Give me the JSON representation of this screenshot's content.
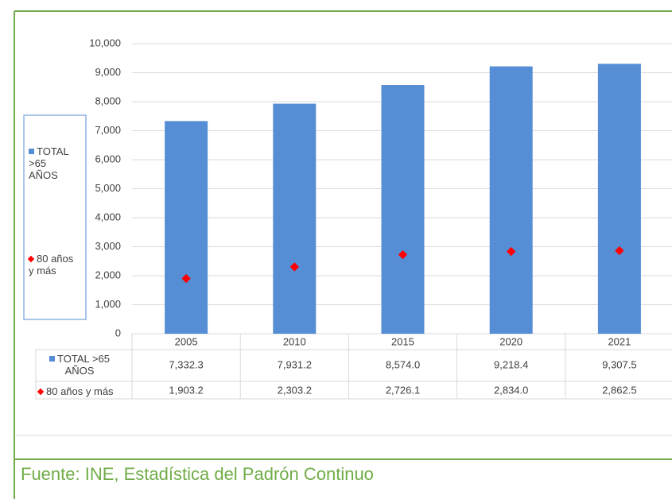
{
  "chart_data": {
    "type": "bar",
    "categories": [
      "2005",
      "2010",
      "2015",
      "2020",
      "2021"
    ],
    "series": [
      {
        "name": "TOTAL >65 AÑOS",
        "type": "bar",
        "color": "#558ed5",
        "values": [
          7332.3,
          7931.2,
          8574.0,
          9218.4,
          9307.5
        ],
        "value_labels": [
          "7,332.3",
          "7,931.2",
          "8,574.0",
          "9,218.4",
          "9,307.5"
        ]
      },
      {
        "name": "80 años y más",
        "type": "diamond",
        "color": "#ff0000",
        "values": [
          1903.2,
          2303.2,
          2726.1,
          2834.0,
          2862.5
        ],
        "value_labels": [
          "1,903.2",
          "2,303.2",
          "2,726.1",
          "2,834.0",
          "2,862.5"
        ]
      }
    ],
    "ylim": [
      0,
      10000
    ],
    "yticks": [
      0,
      {
        "value": 1000,
        "label": "1,000"
      },
      {
        "value": 2000,
        "label": "2,000"
      },
      {
        "value": 3000,
        "label": "3,000"
      },
      {
        "value": 4000,
        "label": "4,000"
      },
      {
        "value": 5000,
        "label": "5,000"
      },
      {
        "value": 6000,
        "label": "6,000"
      },
      {
        "value": 7000,
        "label": "7,000"
      },
      {
        "value": 8000,
        "label": "8,000"
      },
      {
        "value": 9000,
        "label": "9,000"
      },
      {
        "value": 10000,
        "label": "10,000"
      }
    ],
    "grid": true
  },
  "source": "Fuente: INE, Estadística del Padrón Continuo"
}
